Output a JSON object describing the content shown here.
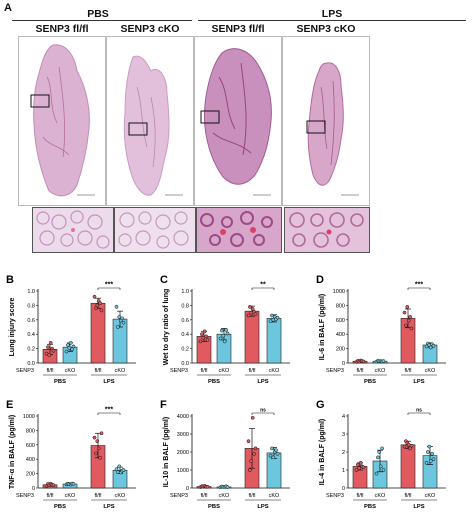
{
  "panel_a": {
    "letter": "A",
    "groups": [
      {
        "id": "pbs",
        "label": "PBS"
      },
      {
        "id": "lps",
        "label": "LPS"
      }
    ],
    "columns": [
      "SENP3 fl/fl",
      "SENP3 cKO",
      "SENP3 fl/fl",
      "SENP3 cKO"
    ]
  },
  "colors": {
    "flfl": "#e05a5f",
    "cko": "#6cc6dd",
    "tissue": "#d9a7c9",
    "tissue_dense": "#b45d95",
    "bg": "#ffffff"
  },
  "charts": [
    {
      "letter": "B",
      "ylabel": "Lung injury score",
      "sig": "***",
      "yticks": [
        "0.0",
        "0.2",
        "0.4",
        "0.6",
        "0.8",
        "1.0"
      ],
      "senp3": "SENP3",
      "xcats": [
        "fl/fl",
        "cKO",
        "fl/fl",
        "cKO"
      ],
      "groups": [
        "PBS",
        "LPS"
      ]
    },
    {
      "letter": "C",
      "ylabel": "Wet to dry ratio of lung",
      "sig": "**",
      "yticks": [
        "0.0",
        "0.2",
        "0.4",
        "0.6",
        "0.8",
        "1.0"
      ],
      "senp3": "SENP3",
      "xcats": [
        "fl/fl",
        "cKO",
        "fl/fl",
        "cKO"
      ],
      "groups": [
        "PBS",
        "LPS"
      ]
    },
    {
      "letter": "D",
      "ylabel": "IL-6 in BALF (pg/ml)",
      "sig": "***",
      "yticks": [
        "0",
        "200",
        "400",
        "600",
        "800",
        "1000"
      ],
      "senp3": "SENP3",
      "xcats": [
        "fl/fl",
        "cKO",
        "fl/fl",
        "cKO"
      ],
      "groups": [
        "PBS",
        "LPS"
      ]
    },
    {
      "letter": "E",
      "ylabel": "TNF-α in BALF (pg/ml)",
      "sig": "***",
      "yticks": [
        "0",
        "200",
        "400",
        "600",
        "800",
        "1000"
      ],
      "senp3": "SENP3",
      "xcats": [
        "fl/fl",
        "cKO",
        "fl/fl",
        "cKO"
      ],
      "groups": [
        "PBS",
        "LPS"
      ]
    },
    {
      "letter": "F",
      "ylabel": "IL-10 in BALF (pg/ml)",
      "sig": "ns",
      "yticks": [
        "0",
        "1000",
        "2000",
        "3000",
        "4000"
      ],
      "senp3": "SENP3",
      "xcats": [
        "fl/fl",
        "cKO",
        "fl/fl",
        "cKO"
      ],
      "groups": [
        "PBS",
        "LPS"
      ]
    },
    {
      "letter": "G",
      "ylabel": "IL-4 in BALF (pg/ml)",
      "sig": "ns",
      "yticks": [
        "0",
        "1",
        "2",
        "3",
        "4"
      ],
      "senp3": "SENP3",
      "xcats": [
        "fl/fl",
        "cKO",
        "fl/fl",
        "cKO"
      ],
      "groups": [
        "PBS",
        "LPS"
      ]
    }
  ],
  "chart_data": [
    {
      "type": "bar",
      "panel": "B",
      "categories": [
        "PBS fl/fl",
        "PBS cKO",
        "LPS fl/fl",
        "LPS cKO"
      ],
      "values": [
        0.19,
        0.22,
        0.83,
        0.61
      ],
      "errors": [
        0.07,
        0.06,
        0.07,
        0.11
      ],
      "points": [
        [
          0.13,
          0.22,
          0.11,
          0.28,
          0.2,
          0.17
        ],
        [
          0.16,
          0.25,
          0.21,
          0.28,
          0.19,
          0.23
        ],
        [
          0.92,
          0.76,
          0.8,
          0.86,
          0.83,
          0.73
        ],
        [
          0.78,
          0.5,
          0.64,
          0.59,
          0.62,
          0.56
        ]
      ],
      "ylabel": "Lung injury score",
      "ylim": [
        0,
        1.0
      ],
      "bracket": [
        2,
        3
      ],
      "significance": "***"
    },
    {
      "type": "bar",
      "panel": "C",
      "categories": [
        "PBS fl/fl",
        "PBS cKO",
        "LPS fl/fl",
        "LPS cKO"
      ],
      "values": [
        0.37,
        0.4,
        0.72,
        0.62
      ],
      "errors": [
        0.07,
        0.08,
        0.07,
        0.05
      ],
      "points": [
        [
          0.3,
          0.4,
          0.35,
          0.44,
          0.37,
          0.32
        ],
        [
          0.34,
          0.45,
          0.38,
          0.3,
          0.46,
          0.41
        ],
        [
          0.66,
          0.78,
          0.7,
          0.75,
          0.71,
          0.68
        ],
        [
          0.58,
          0.66,
          0.6,
          0.64,
          0.61,
          0.63
        ]
      ],
      "ylabel": "Wet to dry ratio of lung",
      "ylim": [
        0,
        1.0
      ],
      "bracket": [
        2,
        3
      ],
      "significance": "**"
    },
    {
      "type": "bar",
      "panel": "D",
      "categories": [
        "PBS fl/fl",
        "PBS cKO",
        "LPS fl/fl",
        "LPS cKO"
      ],
      "values": [
        25,
        25,
        620,
        250
      ],
      "errors": [
        10,
        10,
        130,
        30
      ],
      "points": [
        [
          15,
          30,
          20,
          35,
          25,
          22
        ],
        [
          18,
          30,
          24,
          28,
          20,
          26
        ],
        [
          700,
          520,
          780,
          590,
          640,
          480
        ],
        [
          230,
          270,
          250,
          215,
          260,
          240
        ]
      ],
      "ylabel": "IL-6 in BALF (pg/ml)",
      "ylim": [
        0,
        1000
      ],
      "bracket": [
        2,
        3
      ],
      "significance": "***"
    },
    {
      "type": "bar",
      "panel": "E",
      "categories": [
        "PBS fl/fl",
        "PBS cKO",
        "LPS fl/fl",
        "LPS cKO"
      ],
      "values": [
        45,
        55,
        590,
        245
      ],
      "errors": [
        15,
        10,
        170,
        45
      ],
      "points": [
        [
          30,
          55,
          40,
          60,
          45,
          38
        ],
        [
          50,
          60,
          55,
          48,
          62,
          58
        ],
        [
          700,
          480,
          650,
          550,
          420,
          760
        ],
        [
          260,
          220,
          300,
          215,
          240,
          250
        ]
      ],
      "ylabel": "TNF-α in BALF (pg/ml)",
      "ylim": [
        0,
        1000
      ],
      "bracket": [
        2,
        3
      ],
      "significance": "***"
    },
    {
      "type": "bar",
      "panel": "F",
      "categories": [
        "PBS fl/fl",
        "PBS cKO",
        "LPS fl/fl",
        "LPS cKO"
      ],
      "values": [
        80,
        60,
        2200,
        1950
      ],
      "errors": [
        30,
        30,
        1100,
        300
      ],
      "points": [
        [
          50,
          100,
          80,
          120,
          60,
          70
        ],
        [
          40,
          80,
          60,
          50,
          90,
          45
        ],
        [
          2600,
          1000,
          1500,
          3900,
          1900,
          2200
        ],
        [
          1800,
          2200,
          1700,
          2000,
          2100,
          1900
        ]
      ],
      "ylabel": "IL-10 in BALF (pg/ml)",
      "ylim": [
        0,
        4000
      ],
      "bracket": [
        2,
        3
      ],
      "significance": "ns"
    },
    {
      "type": "bar",
      "panel": "G",
      "categories": [
        "PBS fl/fl",
        "PBS cKO",
        "LPS fl/fl",
        "LPS cKO"
      ],
      "values": [
        1.2,
        1.5,
        2.4,
        1.8
      ],
      "errors": [
        0.2,
        0.6,
        0.2,
        0.5
      ],
      "points": [
        [
          1.0,
          1.3,
          1.1,
          1.4,
          1.2,
          1.15
        ],
        [
          0.8,
          1.7,
          2.0,
          1.2,
          2.2,
          1.0
        ],
        [
          2.3,
          2.6,
          2.5,
          2.4,
          2.2,
          2.35
        ],
        [
          1.4,
          2.0,
          2.3,
          1.5,
          1.9,
          1.6
        ]
      ],
      "ylabel": "IL-4 in BALF (pg/ml)",
      "ylim": [
        0,
        4
      ],
      "bracket": [
        2,
        3
      ],
      "significance": "ns"
    }
  ]
}
